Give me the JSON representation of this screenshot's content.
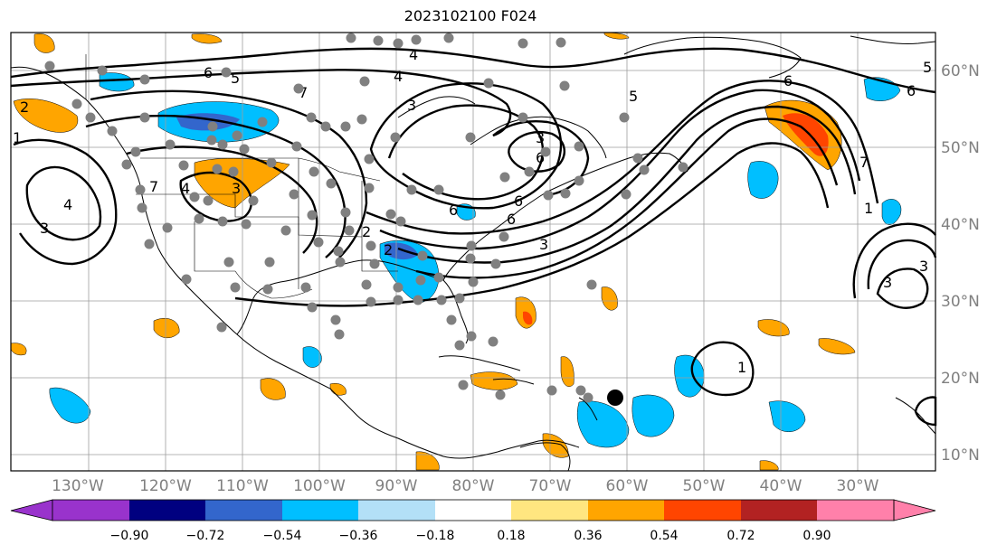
{
  "title": "2023102100 F024",
  "map": {
    "lon_labels": [
      "130°W",
      "120°W",
      "110°W",
      "100°W",
      "90°W",
      "80°W",
      "70°W",
      "60°W",
      "50°W",
      "40°W",
      "30°W"
    ],
    "lat_labels": [
      "60°N",
      "50°N",
      "40°N",
      "30°N",
      "20°N",
      "10°N"
    ],
    "contour_labels": [
      "2",
      "1",
      "6",
      "5",
      "4",
      "7",
      "4",
      "3",
      "3",
      "4",
      "3",
      "3",
      "3",
      "5",
      "6",
      "6",
      "2",
      "7",
      "6",
      "6",
      "5",
      "1",
      "3",
      "3",
      "4",
      "6",
      "6",
      "2",
      "7",
      "1"
    ],
    "station_color": "#808080",
    "storm_marker_color": "#000000"
  },
  "colorbar": {
    "ticks": [
      "−0.90",
      "−0.72",
      "−0.54",
      "−0.36",
      "−0.18",
      "0.18",
      "0.36",
      "0.54",
      "0.72",
      "0.90"
    ],
    "colors": [
      "#9933cc",
      "#000080",
      "#3366cc",
      "#00bfff",
      "#b3e0f7",
      "#ffffff",
      "#ffe680",
      "#ffa500",
      "#ff4500",
      "#b22222",
      "#ff80aa"
    ]
  }
}
